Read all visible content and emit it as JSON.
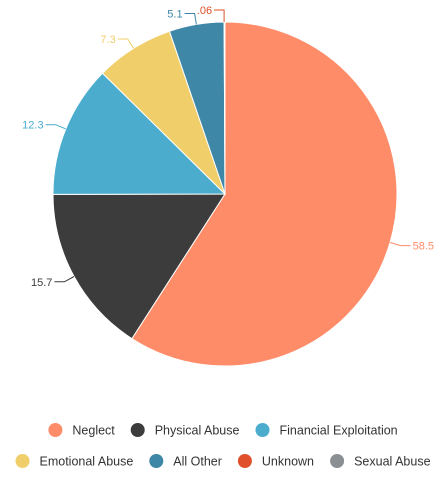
{
  "chart_data": {
    "type": "pie",
    "title": "",
    "start_angle_deg": 0,
    "direction": "clockwise",
    "slices": [
      {
        "name": "Neglect",
        "value": 58.5,
        "label": "58.5",
        "color": "#FF8C69",
        "label_side": "right"
      },
      {
        "name": "Physical Abuse",
        "value": 15.7,
        "label": "15.7",
        "color": "#3C3C3C",
        "label_side": "left"
      },
      {
        "name": "Financial Exploitation",
        "value": 12.3,
        "label": "12.3",
        "color": "#4BACCE",
        "label_side": "left"
      },
      {
        "name": "Emotional Abuse",
        "value": 7.3,
        "label": "7.3",
        "color": "#F0CE6A",
        "label_side": "left"
      },
      {
        "name": "All Other",
        "value": 5.1,
        "label": "5.1",
        "color": "#3F87A6",
        "label_side": "left"
      },
      {
        "name": "Unknown",
        "value": 0.06,
        "label": ".06",
        "color": "#E0502A",
        "label_side": "left"
      },
      {
        "name": "Sexual Abuse",
        "value": 0.02,
        "label": "",
        "color": "#8A8F94",
        "label_side": "none"
      }
    ],
    "legend": {
      "position": "bottom",
      "rows": [
        [
          "Neglect",
          "Physical Abuse",
          "Financial Exploitation"
        ],
        [
          "Emotional Abuse",
          "All Other",
          "Unknown",
          "Sexual Abuse"
        ]
      ]
    }
  }
}
